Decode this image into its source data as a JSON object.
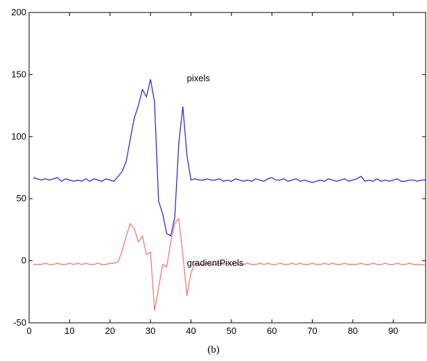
{
  "chart_data": {
    "type": "line",
    "title": "",
    "xlabel": "",
    "ylabel": "",
    "xlim": [
      0,
      98
    ],
    "ylim": [
      -50,
      200
    ],
    "xticks": [
      0,
      10,
      20,
      30,
      40,
      50,
      60,
      70,
      80,
      90
    ],
    "yticks": [
      -50,
      0,
      50,
      100,
      150,
      200
    ],
    "grid": false,
    "legend": "none",
    "series": [
      {
        "name": "pixels",
        "color": "#2a2ad8",
        "x": [
          1,
          2,
          3,
          4,
          5,
          6,
          7,
          8,
          9,
          10,
          11,
          12,
          13,
          14,
          15,
          16,
          17,
          18,
          19,
          20,
          21,
          22,
          23,
          24,
          25,
          26,
          27,
          28,
          29,
          30,
          31,
          32,
          33,
          34,
          35,
          36,
          37,
          38,
          39,
          40,
          41,
          42,
          43,
          44,
          45,
          46,
          47,
          48,
          49,
          50,
          51,
          52,
          53,
          54,
          55,
          56,
          57,
          58,
          59,
          60,
          61,
          62,
          63,
          64,
          65,
          66,
          67,
          68,
          69,
          70,
          71,
          72,
          73,
          74,
          75,
          76,
          77,
          78,
          79,
          80,
          81,
          82,
          83,
          84,
          85,
          86,
          87,
          88,
          89,
          90,
          91,
          92,
          93,
          94,
          95,
          96,
          97,
          98
        ],
        "y": [
          67,
          66,
          65,
          66,
          65,
          66,
          67,
          64,
          66,
          65,
          64,
          65,
          64,
          66,
          64,
          66,
          65,
          64,
          66,
          65,
          64,
          68,
          72,
          80,
          98,
          115,
          125,
          138,
          132,
          146,
          128,
          48,
          38,
          22,
          20,
          35,
          95,
          124,
          85,
          65,
          66,
          65,
          65,
          66,
          65,
          65,
          66,
          64,
          65,
          64,
          66,
          65,
          64,
          65,
          64,
          66,
          65,
          64,
          66,
          67,
          65,
          65,
          66,
          64,
          65,
          66,
          64,
          65,
          64,
          63,
          64,
          65,
          64,
          66,
          65,
          64,
          65,
          66,
          64,
          65,
          66,
          68,
          64,
          65,
          64,
          66,
          64,
          65,
          64,
          65,
          66,
          64,
          64,
          65,
          65,
          64,
          65,
          65
        ]
      },
      {
        "name": "gradientPixels",
        "color": "#f07878",
        "x": [
          1,
          2,
          3,
          4,
          5,
          6,
          7,
          8,
          9,
          10,
          11,
          12,
          13,
          14,
          15,
          16,
          17,
          18,
          19,
          20,
          21,
          22,
          23,
          24,
          25,
          26,
          27,
          28,
          29,
          30,
          31,
          32,
          33,
          34,
          35,
          36,
          37,
          38,
          39,
          40,
          41,
          42,
          43,
          44,
          45,
          46,
          47,
          48,
          49,
          50,
          51,
          52,
          53,
          54,
          55,
          56,
          57,
          58,
          59,
          60,
          61,
          62,
          63,
          64,
          65,
          66,
          67,
          68,
          69,
          70,
          71,
          72,
          73,
          74,
          75,
          76,
          77,
          78,
          79,
          80,
          81,
          82,
          83,
          84,
          85,
          86,
          87,
          88,
          89,
          90,
          91,
          92,
          93,
          94,
          95,
          96,
          97,
          98
        ],
        "y": [
          -3,
          -3,
          -3,
          -2,
          -3,
          -3,
          -2,
          -3,
          -3,
          -2,
          -3,
          -2,
          -3,
          -2,
          -3,
          -3,
          -2,
          -3,
          -3,
          -2,
          -2,
          -1,
          8,
          20,
          30,
          26,
          15,
          20,
          5,
          7,
          -40,
          -22,
          -3,
          -5,
          15,
          30,
          34,
          5,
          -28,
          -10,
          -2,
          -3,
          -3,
          -2,
          -3,
          -3,
          -2,
          -3,
          -2,
          -3,
          -2,
          -3,
          -3,
          -2,
          -3,
          -3,
          -2,
          -3,
          -2,
          -3,
          -3,
          -2,
          -3,
          -3,
          -2,
          -3,
          -2,
          -3,
          -3,
          -2,
          -3,
          -3,
          -2,
          -3,
          -2,
          -3,
          -3,
          -2,
          -3,
          -3,
          -3,
          -2,
          -3,
          -3,
          -2,
          -3,
          -3,
          -2,
          -3,
          -3,
          -2,
          -3,
          -3,
          -2,
          -3,
          -3,
          -3,
          -4
        ]
      }
    ],
    "annotations": [
      {
        "text": "pixels",
        "x": 39,
        "y": 147
      },
      {
        "text": "gradientPixels",
        "x": 39,
        "y": -2
      }
    ],
    "caption": "(b)"
  }
}
